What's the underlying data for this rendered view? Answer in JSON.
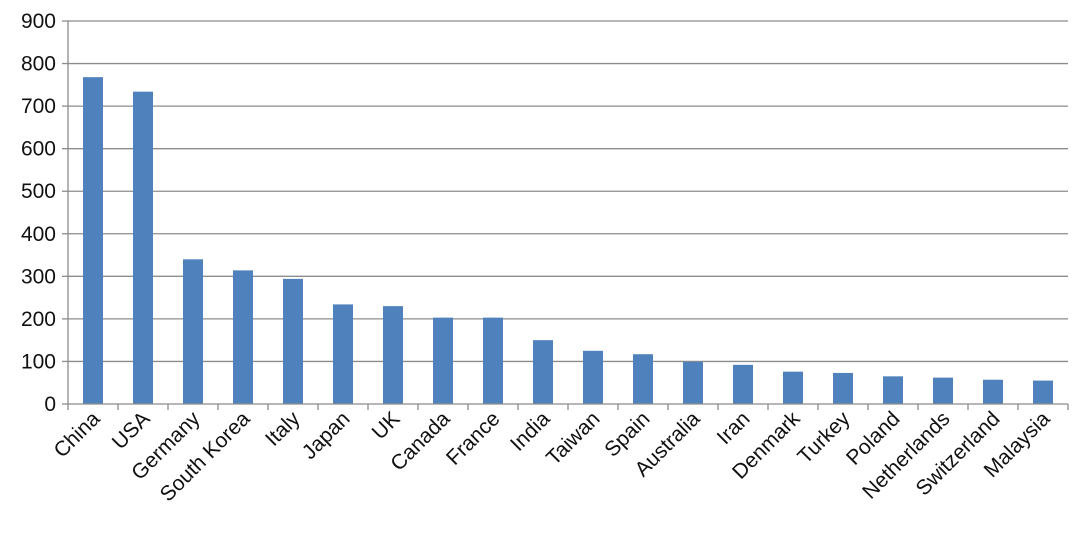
{
  "chart_data": {
    "type": "bar",
    "title": "",
    "xlabel": "",
    "ylabel": "",
    "ylim": [
      0,
      900
    ],
    "yticks": [
      0,
      100,
      200,
      300,
      400,
      500,
      600,
      700,
      800,
      900
    ],
    "grid": "horizontal",
    "legend": "none",
    "bar_color": "#4F81BD",
    "categories": [
      "China",
      "USA",
      "Germany",
      "South Korea",
      "Italy",
      "Japan",
      "UK",
      "Canada",
      "France",
      "India",
      "Taiwan",
      "Spain",
      "Australia",
      "Iran",
      "Denmark",
      "Turkey",
      "Poland",
      "Netherlands",
      "Switzerland",
      "Malaysia"
    ],
    "values": [
      768,
      734,
      340,
      314,
      294,
      234,
      230,
      203,
      203,
      150,
      125,
      117,
      99,
      92,
      76,
      73,
      65,
      62,
      57,
      55
    ]
  }
}
